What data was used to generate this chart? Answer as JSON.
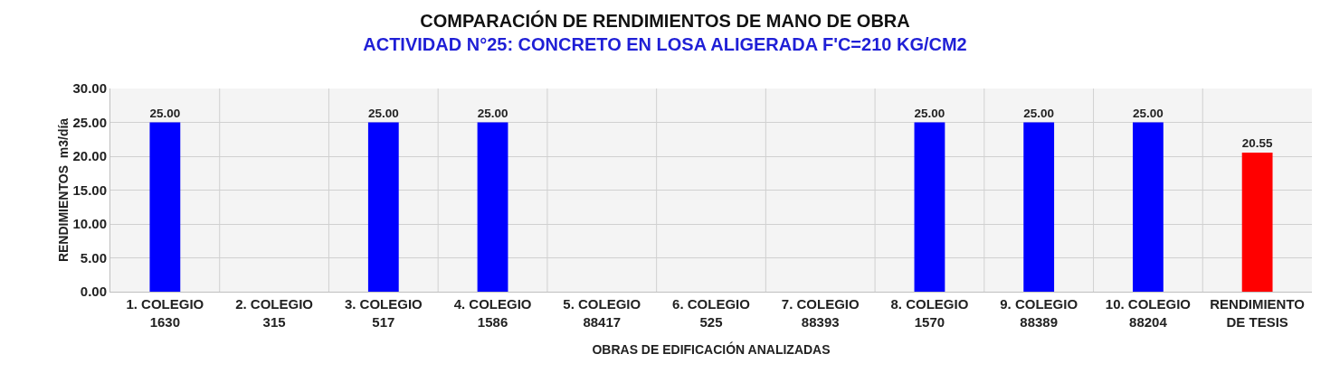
{
  "chart_data": {
    "type": "bar",
    "title": "COMPARACIÓN DE RENDIMIENTOS DE MANO DE OBRA",
    "subtitle": "ACTIVIDAD N°25: CONCRETO EN LOSA ALIGERADA F'C=210 KG/CM2",
    "xlabel": "OBRAS DE EDIFICACIÓN ANALIZADAS",
    "ylabel": "RENDIMIENTOS  m3/día",
    "categories": [
      "1. COLEGIO\n1630",
      "2. COLEGIO\n315",
      "3. COLEGIO\n517",
      "4. COLEGIO\n1586",
      "5. COLEGIO\n88417",
      "6. COLEGIO\n525",
      "7. COLEGIO\n88393",
      "8. COLEGIO\n1570",
      "9. COLEGIO\n88389",
      "10. COLEGIO\n88204",
      "RENDIMIENTO\nDE TESIS"
    ],
    "values": [
      25,
      null,
      25,
      25,
      null,
      null,
      null,
      25,
      25,
      25,
      20.55
    ],
    "value_labels": [
      "25.00",
      null,
      "25.00",
      "25.00",
      null,
      null,
      null,
      "25.00",
      "25.00",
      "25.00",
      "20.55"
    ],
    "colors": [
      "#0000ff",
      "#0000ff",
      "#0000ff",
      "#0000ff",
      "#0000ff",
      "#0000ff",
      "#0000ff",
      "#0000ff",
      "#0000ff",
      "#0000ff",
      "#ff0000"
    ],
    "ylim": [
      0,
      30
    ],
    "yticks": [
      {
        "value": 0,
        "label": "0.00"
      },
      {
        "value": 5,
        "label": "5.00"
      },
      {
        "value": 10,
        "label": "10.00"
      },
      {
        "value": 15,
        "label": "15.00"
      },
      {
        "value": 20,
        "label": "20.00"
      },
      {
        "value": 25,
        "label": "25.00"
      },
      {
        "value": 30,
        "label": "30.00"
      }
    ],
    "grid": true
  }
}
